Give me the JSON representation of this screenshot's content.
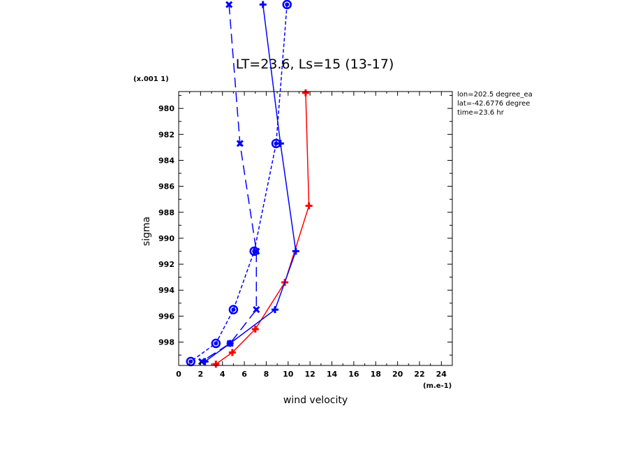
{
  "chart_data": {
    "type": "line",
    "title": "LT=23.6, Ls=15 (13-17)",
    "xlabel": "wind velocity",
    "ylabel": "sigma",
    "x_scale_note": "(m.e-1)",
    "y_scale_note": "(x.001 1)",
    "xlim": [
      0,
      25
    ],
    "ylim": [
      999.8,
      978.7
    ],
    "x_ticks": [
      "0",
      "2",
      "4",
      "6",
      "8",
      "10",
      "12",
      "14",
      "16",
      "18",
      "20",
      "22",
      "24"
    ],
    "y_ticks": [
      "980",
      "982",
      "984",
      "986",
      "988",
      "990",
      "992",
      "994",
      "996",
      "998"
    ],
    "annotations": [
      "lon=202.5 degree_ea",
      "lat=-42.6776 degree",
      "time=23.6 hr"
    ],
    "series": [
      {
        "color": "#ff0000",
        "dash": "solid",
        "marker": "plus",
        "x": [
          11.6,
          11.9,
          9.7,
          7.0,
          4.9,
          3.4
        ],
        "y": [
          978.8,
          987.5,
          993.4,
          997.0,
          998.8,
          999.7
        ]
      },
      {
        "color": "#0000ff",
        "dash": "solid",
        "marker": "plus",
        "x": [
          7.7,
          9.3,
          10.7,
          8.8,
          4.7,
          2.4
        ],
        "y": [
          972.0,
          982.7,
          991.0,
          995.5,
          998.1,
          999.5
        ]
      },
      {
        "color": "#0000ff",
        "dash": "longdash",
        "marker": "cross",
        "x": [
          4.6,
          5.6,
          7.1,
          7.1,
          4.7,
          2.1
        ],
        "y": [
          972.0,
          982.7,
          991.0,
          995.5,
          998.1,
          999.5
        ]
      },
      {
        "color": "#0000ff",
        "dash": "shortdash",
        "marker": "circle",
        "x": [
          9.9,
          8.9,
          6.9,
          5.0,
          3.4,
          1.1
        ],
        "y": [
          972.0,
          982.7,
          991.0,
          995.5,
          998.1,
          999.5
        ]
      }
    ]
  }
}
